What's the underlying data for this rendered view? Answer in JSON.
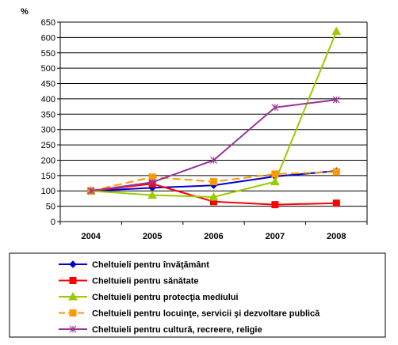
{
  "chart_data": {
    "type": "line",
    "ylabel": "%",
    "xlabel": "",
    "categories": [
      "2004",
      "2005",
      "2006",
      "2007",
      "2008"
    ],
    "ylim": [
      0,
      650
    ],
    "ytick_step": 50,
    "grid": true,
    "legend_position": "bottom",
    "series": [
      {
        "name": "Cheltuieli pentru învăţământ",
        "color": "#0000cc",
        "marker": "diamond",
        "dashed": false,
        "values": [
          100,
          110,
          118,
          147,
          165
        ]
      },
      {
        "name": "Cheltuieli pentru sănătate",
        "color": "#ff0000",
        "marker": "square",
        "dashed": false,
        "values": [
          100,
          123,
          65,
          55,
          60
        ]
      },
      {
        "name": "Cheltuieli pentru protecţia mediului",
        "color": "#99cc00",
        "marker": "triangle",
        "dashed": false,
        "values": [
          100,
          86,
          80,
          130,
          620
        ]
      },
      {
        "name": "Cheltuieli pentru locuinţe, servicii şi dezvoltare publică",
        "color": "#ff9900",
        "marker": "square",
        "dashed": true,
        "values": [
          100,
          145,
          130,
          155,
          162
        ]
      },
      {
        "name": "Cheltuieli pentru cultură, recreere, religie",
        "color": "#993399",
        "marker": "star",
        "dashed": false,
        "values": [
          100,
          128,
          200,
          372,
          397
        ]
      }
    ]
  }
}
